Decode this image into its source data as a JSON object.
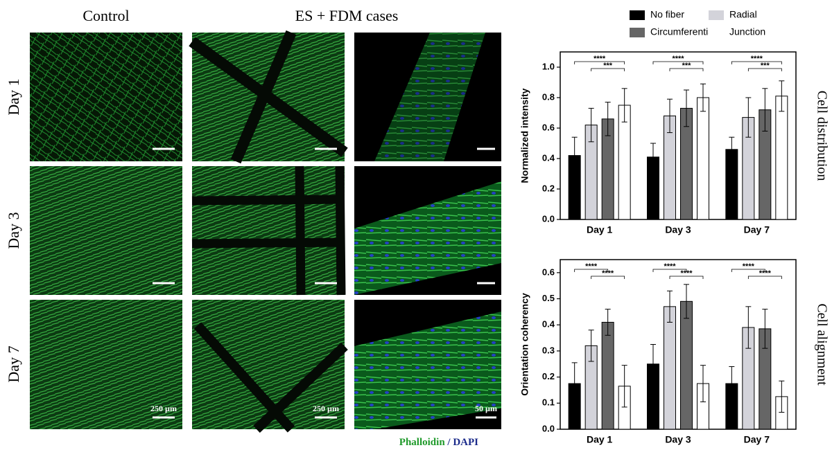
{
  "figure": {
    "column_titles": [
      "Control",
      "ES + FDM cases"
    ],
    "row_titles": [
      "Day 1",
      "Day 3",
      "Day 7"
    ],
    "scale_bars": [
      "250 µm",
      "250 µm",
      "50 µm"
    ],
    "stain": [
      "Phalloidin",
      "/",
      "DAPI"
    ]
  },
  "chart_data": [
    {
      "type": "bar",
      "y_label": "Normalized intensity",
      "side_label": "Cell distribution",
      "categories": [
        "Day 1",
        "Day 3",
        "Day 7"
      ],
      "series": [
        {
          "name": "No fiber",
          "color": "#000000",
          "values": [
            0.42,
            0.41,
            0.46
          ],
          "errors": [
            0.12,
            0.09,
            0.08
          ]
        },
        {
          "name": "Radial",
          "color": "#d3d3da",
          "values": [
            0.62,
            0.68,
            0.67
          ],
          "errors": [
            0.11,
            0.11,
            0.13
          ]
        },
        {
          "name": "Circumferential",
          "color": "#666666",
          "values": [
            0.66,
            0.73,
            0.72
          ],
          "errors": [
            0.11,
            0.12,
            0.14
          ]
        },
        {
          "name": "Junction",
          "color": "#ffffff",
          "values": [
            0.75,
            0.8,
            0.81
          ],
          "errors": [
            0.11,
            0.09,
            0.1
          ]
        }
      ],
      "annotations": [
        {
          "label": "****",
          "series": [
            0,
            3
          ]
        },
        {
          "label": "***",
          "series": [
            1,
            3
          ]
        }
      ],
      "ylim": [
        0,
        1.1
      ],
      "yticks": [
        {
          "value": 0,
          "label": "0.0"
        },
        0.2,
        0.4,
        0.6,
        0.8,
        {
          "value": 1,
          "label": "1.0"
        }
      ]
    },
    {
      "type": "bar",
      "y_label": "Orientation coherency",
      "side_label": "Cell alignment",
      "categories": [
        "Day 1",
        "Day 3",
        "Day 7"
      ],
      "series": [
        {
          "color": "#000000",
          "values": [
            0.175,
            0.25,
            0.175
          ],
          "errors": [
            0.08,
            0.075,
            0.065
          ]
        },
        {
          "color": "#d3d3da",
          "values": [
            0.32,
            0.47,
            0.39
          ],
          "errors": [
            0.06,
            0.06,
            0.08
          ]
        },
        {
          "color": "#666666",
          "values": [
            0.41,
            0.49,
            0.385
          ],
          "errors": [
            0.05,
            0.065,
            0.075
          ]
        },
        {
          "color": "#ffffff",
          "values": [
            0.165,
            0.175,
            0.125
          ],
          "errors": [
            0.08,
            0.07,
            0.06
          ]
        }
      ],
      "annotations": [
        {
          "label": "****",
          "series": [
            0,
            2
          ]
        },
        {
          "label": "****",
          "series": [
            1,
            3
          ]
        }
      ],
      "ylim": [
        0,
        0.65
      ],
      "yticks": [
        {
          "value": 0,
          "label": "0.0"
        },
        0.1,
        0.2,
        0.3,
        0.4,
        0.5,
        0.6
      ]
    }
  ]
}
